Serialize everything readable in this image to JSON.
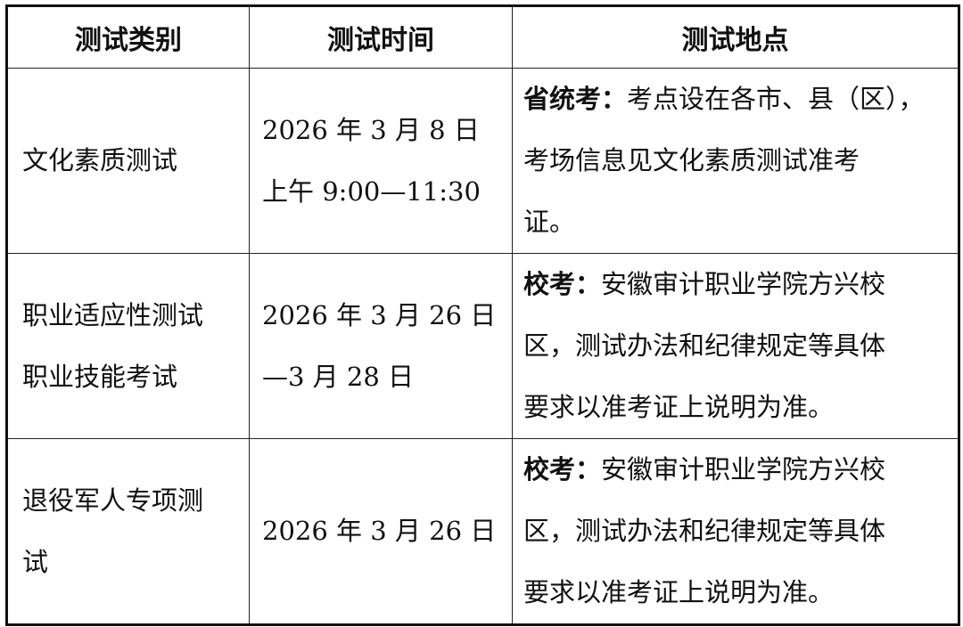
{
  "headers": [
    "测试类别",
    "测试时间",
    "测试地点"
  ],
  "rows": [
    {
      "category": [
        "文化素质测试"
      ],
      "time": [
        "2026 年 3 月 8 日",
        "上午 9:00—11:30"
      ],
      "location_label": "省统考：",
      "location": [
        "考点设在各市、县（区），",
        "考场信息见文化素质测试准考",
        "证。"
      ]
    },
    {
      "category": [
        "职业适应性测试",
        "职业技能考试"
      ],
      "time": [
        "2026 年 3 月 26 日",
        "—3 月 28 日"
      ],
      "location_label": "校考：",
      "location": [
        "安徽审计职业学院方兴校",
        "区，测试办法和纪律规定等具体",
        "要求以准考证上说明为准。"
      ]
    },
    {
      "category": [
        "退役军人专项测",
        "试"
      ],
      "time": [
        "2026 年 3 月 26 日"
      ],
      "location_label": "校考：",
      "location": [
        "安徽审计职业学院方兴校",
        "区，测试办法和纪律规定等具体",
        "要求以准考证上说明为准。"
      ]
    }
  ]
}
